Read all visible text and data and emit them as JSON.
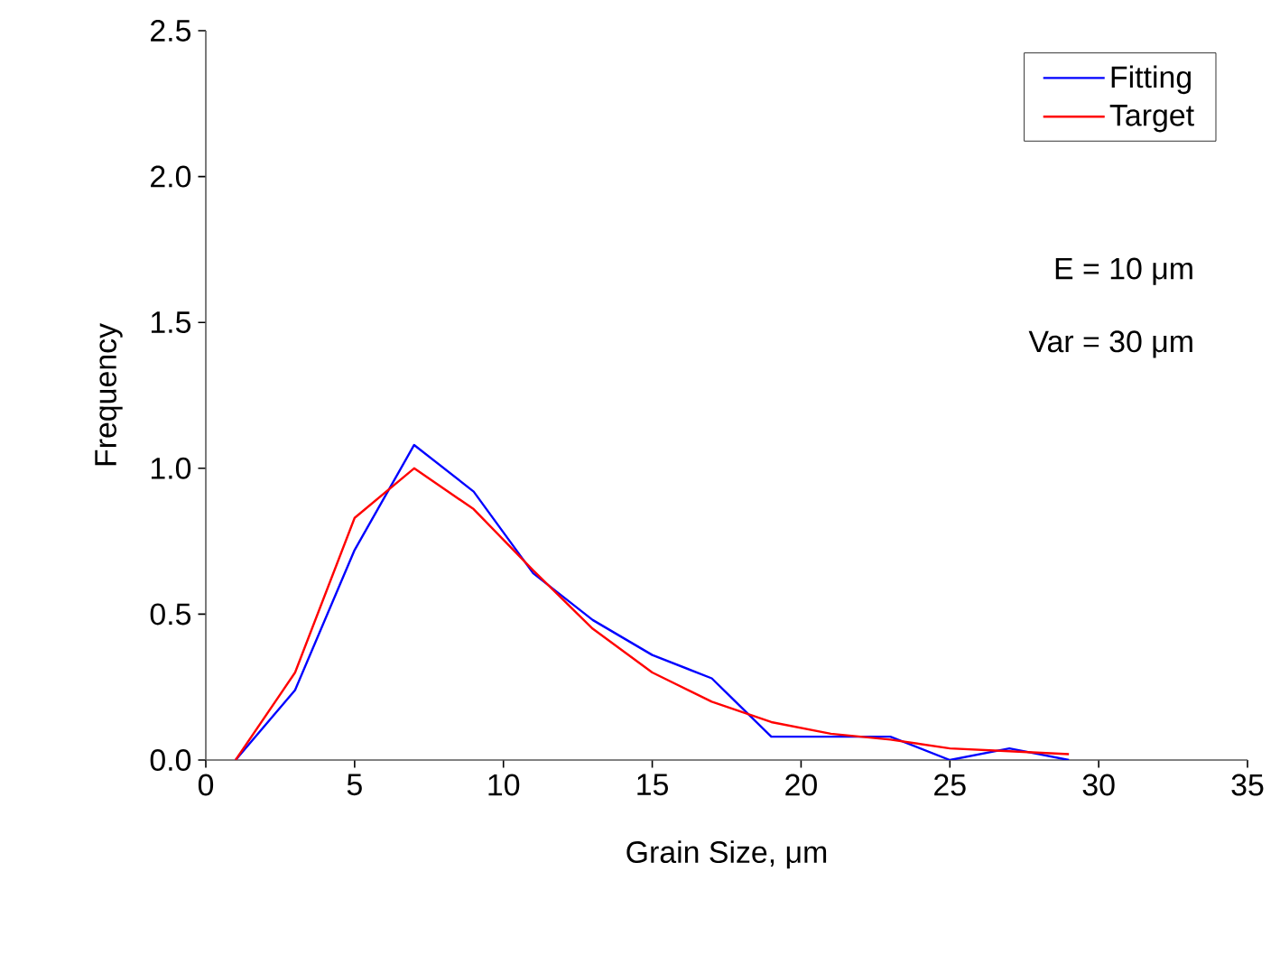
{
  "chart_data": {
    "type": "line",
    "xlabel": "Grain Size, μm",
    "ylabel": "Frequency",
    "xlim": [
      0,
      35
    ],
    "ylim": [
      0,
      2.5
    ],
    "xticks": [
      0,
      5,
      10,
      15,
      20,
      25,
      30,
      35
    ],
    "yticks": [
      {
        "value": 0,
        "label": "0.0"
      },
      {
        "value": 0.5,
        "label": "0.5"
      },
      {
        "value": 1,
        "label": "1.0"
      },
      {
        "value": 1.5,
        "label": "1.5"
      },
      {
        "value": 2,
        "label": "2.0"
      },
      {
        "value": 2.5,
        "label": "2.5"
      }
    ],
    "x": [
      1,
      3,
      5,
      7,
      9,
      11,
      13,
      15,
      17,
      19,
      21,
      23,
      25,
      27,
      29
    ],
    "series": [
      {
        "name": "Fitting",
        "color": "#0000ff",
        "values": [
          0,
          0.24,
          0.72,
          1.08,
          0.92,
          0.64,
          0.48,
          0.36,
          0.28,
          0.08,
          0.08,
          0.08,
          0,
          0.04,
          0
        ]
      },
      {
        "name": "Target",
        "color": "#ff0000",
        "values": [
          0,
          0.3,
          0.83,
          1.0,
          0.86,
          0.65,
          0.45,
          0.3,
          0.2,
          0.13,
          0.09,
          0.07,
          0.04,
          0.03,
          0.02
        ]
      }
    ],
    "annotations": [
      "E = 10 μm",
      "Var = 30 μm"
    ],
    "legend": "top right",
    "grid": false,
    "marker": "none",
    "line_style": "solid"
  }
}
